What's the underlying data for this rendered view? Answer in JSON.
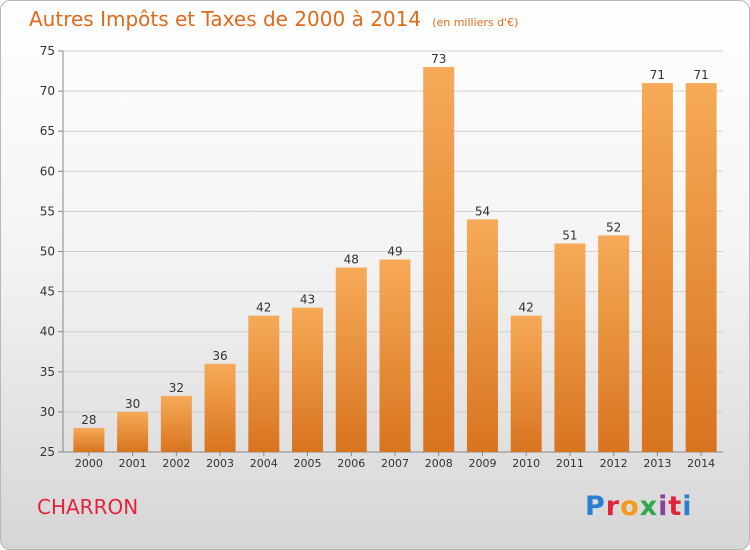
{
  "header": {
    "title": "Autres Impôts et Taxes de 2000 à 2014",
    "unit": "(en milliers d'€)"
  },
  "commune": "CHARRON",
  "logo": {
    "text": "Proxiti",
    "colors": [
      "#2b7fd1",
      "#e2233d",
      "#f19a1c",
      "#2ea84a",
      "#8a3fa0",
      "#e2233d",
      "#2b7fd1"
    ]
  },
  "colors": {
    "bar_top": "#f6aa58",
    "bar_bottom": "#d8741f",
    "title": "#e06a1b",
    "commune": "#e2233d"
  },
  "chart_data": {
    "type": "bar",
    "title": "Autres Impôts et Taxes de 2000 à 2014",
    "subtitle": "(en milliers d'€)",
    "categories": [
      "2000",
      "2001",
      "2002",
      "2003",
      "2004",
      "2005",
      "2006",
      "2007",
      "2008",
      "2009",
      "2010",
      "2011",
      "2012",
      "2013",
      "2014"
    ],
    "values": [
      28,
      30,
      32,
      36,
      42,
      43,
      48,
      49,
      73,
      54,
      42,
      51,
      52,
      71,
      71
    ],
    "ylim": [
      25,
      75
    ],
    "yticks": [
      25,
      30,
      35,
      40,
      45,
      50,
      55,
      60,
      65,
      70,
      75
    ],
    "grid": true,
    "data_labels": true
  }
}
